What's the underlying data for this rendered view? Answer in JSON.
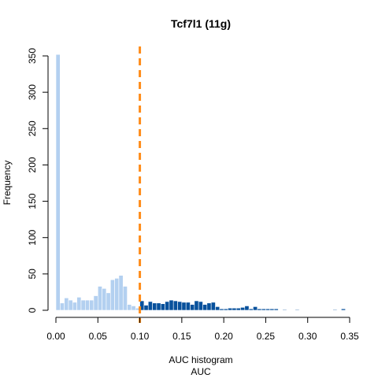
{
  "chart_data": {
    "type": "bar",
    "title": "Tcf7l1 (11g)",
    "xlabel": "AUC histogram",
    "xlabel2": "AUC",
    "ylabel": "Frequency",
    "xlim": [
      0.0,
      0.35
    ],
    "ylim": [
      0,
      350
    ],
    "x_ticks": [
      "0.00",
      "0.05",
      "0.10",
      "0.15",
      "0.20",
      "0.25",
      "0.30",
      "0.35"
    ],
    "y_ticks": [
      "0",
      "50",
      "100",
      "150",
      "200",
      "250",
      "300",
      "350"
    ],
    "bin_width": 0.005,
    "threshold": 0.1,
    "colors": {
      "below_threshold": "#b3d0f0",
      "above_threshold": "#08519c",
      "threshold_line": "#ff8c1a",
      "axis": "#000000"
    },
    "bins_start": [
      0.0,
      0.005,
      0.01,
      0.015,
      0.02,
      0.025,
      0.03,
      0.035,
      0.04,
      0.045,
      0.05,
      0.055,
      0.06,
      0.065,
      0.07,
      0.075,
      0.08,
      0.085,
      0.09,
      0.095,
      0.1,
      0.105,
      0.11,
      0.115,
      0.12,
      0.125,
      0.13,
      0.135,
      0.14,
      0.145,
      0.15,
      0.155,
      0.16,
      0.165,
      0.17,
      0.175,
      0.18,
      0.185,
      0.19,
      0.195,
      0.2,
      0.205,
      0.21,
      0.215,
      0.22,
      0.225,
      0.23,
      0.235,
      0.24,
      0.245,
      0.25,
      0.255,
      0.26,
      0.265,
      0.27,
      0.275,
      0.28,
      0.285,
      0.29,
      0.295,
      0.3,
      0.305,
      0.31,
      0.315,
      0.32,
      0.325,
      0.33,
      0.335,
      0.34
    ],
    "values": [
      352,
      10,
      17,
      14,
      11,
      18,
      14,
      14,
      14,
      20,
      33,
      30,
      24,
      42,
      44,
      48,
      33,
      8,
      6,
      3,
      13,
      7,
      12,
      10,
      10,
      9,
      12,
      14,
      13,
      12,
      11,
      11,
      8,
      13,
      12,
      8,
      10,
      11,
      5,
      2,
      2,
      3,
      3,
      3,
      4,
      6,
      2,
      5,
      2,
      2,
      2,
      2,
      2,
      0,
      1,
      0,
      0,
      1,
      0,
      0,
      0,
      0,
      0,
      0,
      0,
      0,
      1,
      0,
      2
    ]
  }
}
